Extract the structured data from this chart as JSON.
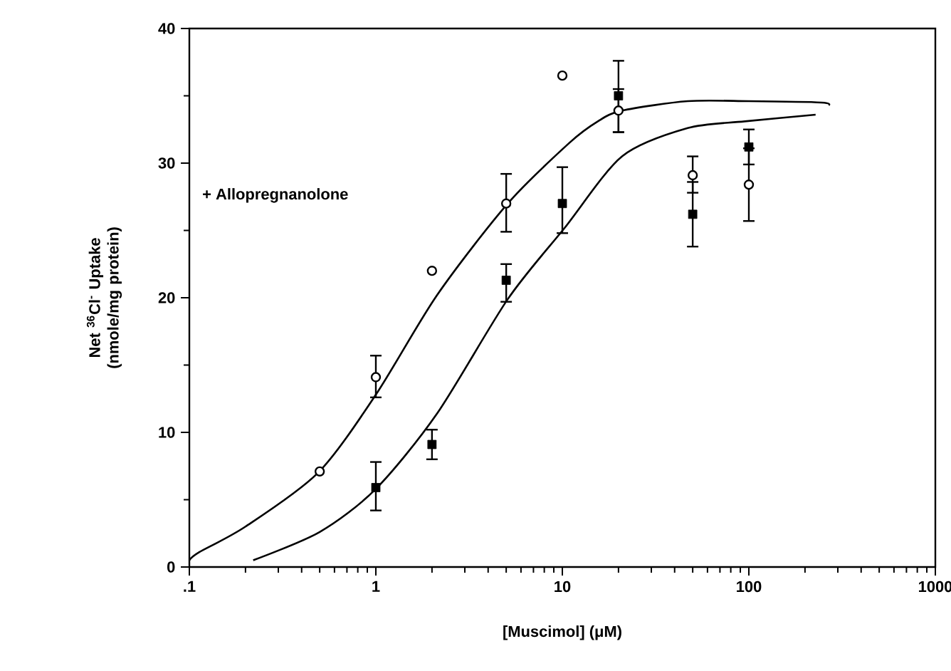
{
  "chart_data": {
    "type": "scatter",
    "xlabel": "[Muscimol]  (μM)",
    "ylabel": "Net $^{36}$Cl$^{-}$ Uptake (nmole/mg protein)",
    "annotations": [
      "+  Allopregnanolone"
    ],
    "log": "x",
    "xlim": [
      0.1,
      1000
    ],
    "ylim": [
      0,
      40
    ],
    "xticks": [
      {
        "value": 0.1,
        "label": ".1"
      },
      1,
      10,
      100,
      1000
    ],
    "yticks": [
      0,
      10,
      20,
      30,
      40
    ],
    "grid": false,
    "series": [
      {
        "marker": "circle",
        "color": "#000000",
        "x": [
          0.5,
          1,
          2,
          5,
          10,
          20,
          50,
          100
        ],
        "values": [
          7.1,
          14.1,
          22.0,
          27.0,
          36.5,
          33.9,
          29.1,
          28.4
        ],
        "errors": [
          null,
          [
            12.6,
            15.7
          ],
          null,
          [
            24.9,
            29.2
          ],
          null,
          [
            32.3,
            35.5
          ],
          [
            27.8,
            30.5
          ],
          [
            25.7,
            31.1
          ]
        ]
      },
      {
        "marker": "square",
        "color": "#000000",
        "x": [
          1,
          2,
          5,
          10,
          20,
          50,
          100
        ],
        "values": [
          5.9,
          9.1,
          21.3,
          27.0,
          35.0,
          26.2,
          31.2
        ],
        "errors": [
          [
            4.2,
            7.8
          ],
          [
            8.0,
            10.2
          ],
          [
            19.7,
            22.5
          ],
          [
            24.8,
            29.7
          ],
          [
            32.3,
            37.6
          ],
          [
            23.8,
            28.6
          ],
          [
            29.9,
            32.5
          ]
        ]
      },
      {
        "type": "line",
        "marker": "none",
        "line_style": "solid",
        "color": "#000000",
        "x": [
          0.1,
          0.113,
          0.2,
          0.49,
          1.0,
          2.13,
          5.1,
          10.9,
          15.5,
          20.9,
          47,
          100,
          245,
          268
        ],
        "values": [
          0.5,
          1.1,
          3.0,
          7.0,
          12.8,
          20.2,
          27.0,
          31.5,
          33.1,
          33.9,
          34.6,
          34.6,
          34.5,
          34.3
        ]
      },
      {
        "type": "line",
        "marker": "none",
        "line_style": "solid",
        "color": "#000000",
        "x": [
          0.22,
          0.5,
          1.0,
          2.13,
          5.1,
          10.3,
          20.9,
          47,
          95,
          228
        ],
        "values": [
          0.5,
          2.6,
          5.8,
          11.4,
          19.9,
          25.2,
          30.5,
          32.6,
          33.1,
          33.6
        ]
      }
    ]
  }
}
